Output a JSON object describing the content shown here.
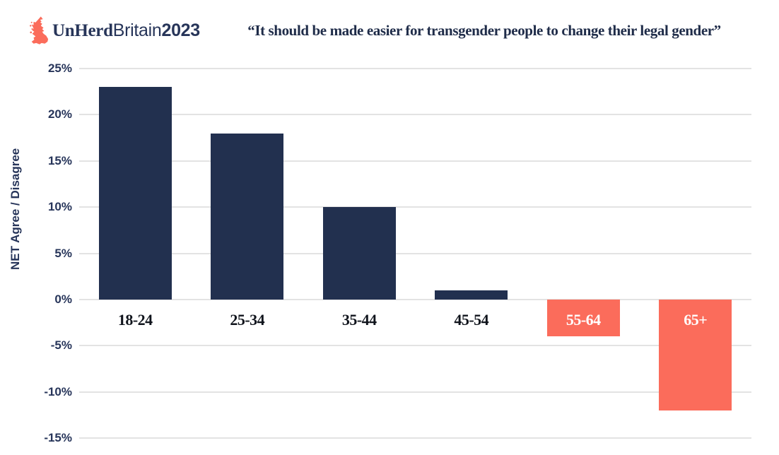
{
  "header": {
    "logo": {
      "brand": "UnHerd",
      "sub": "Britain",
      "year": "2023"
    },
    "title": "“It should be made easier for transgender people to change their legal gender”"
  },
  "chart_data": {
    "type": "bar",
    "title": "“It should be made easier for transgender people to change their legal gender”",
    "categories": [
      "18-24",
      "25-34",
      "35-44",
      "45-54",
      "55-64",
      "65+"
    ],
    "values": [
      23,
      18,
      10,
      1,
      -4,
      -12
    ],
    "xlabel": "",
    "ylabel": "NET Agree / Disagree",
    "ylim": [
      -15,
      25
    ],
    "yticks": [
      25,
      20,
      15,
      10,
      5,
      0,
      -5,
      -10,
      -15
    ],
    "ytick_suffix": "%",
    "grid": true,
    "legend": false,
    "colors": {
      "positive_bar": "#22304F",
      "negative_bar": "#FB6C5B",
      "gridline": "#E3E3E3",
      "axis_text": "#27355A",
      "category_label": "#10141C",
      "category_label_on_bar": "#FFFFFF",
      "brand_red": "#FB6C5B"
    }
  }
}
